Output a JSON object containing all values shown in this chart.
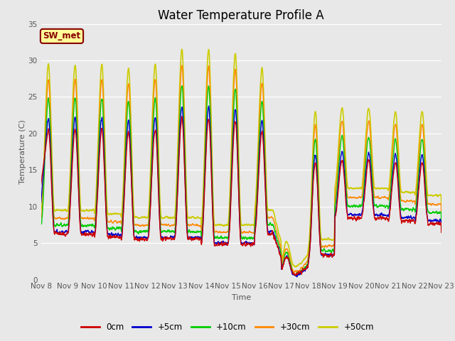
{
  "title": "Water Temperature Profile A",
  "xlabel": "Time",
  "ylabel": "Temperature (C)",
  "ylim": [
    0,
    35
  ],
  "xlim": [
    0,
    15
  ],
  "fig_bg": "#e8e8e8",
  "plot_bg": "#e8e8e8",
  "annotation_text": "SW_met",
  "annotation_bg": "#ffff99",
  "annotation_fg": "#880000",
  "annotation_border": "#880000",
  "legend_entries": [
    "0cm",
    "+5cm",
    "+10cm",
    "+30cm",
    "+50cm"
  ],
  "line_colors": [
    "#cc0000",
    "#0000cc",
    "#00cc00",
    "#ff8800",
    "#cccc00"
  ],
  "line_widths": [
    1.0,
    1.0,
    1.0,
    1.0,
    1.2
  ],
  "xtick_labels": [
    "Nov 8",
    "Nov 9",
    "Nov 10",
    "Nov 11",
    "Nov 12",
    "Nov 13",
    "Nov 14",
    "Nov 15",
    "Nov 16",
    "Nov 17",
    "Nov 18",
    "Nov 19",
    "Nov 20",
    "Nov 21",
    "Nov 22",
    "Nov 23"
  ],
  "ytick_vals": [
    0,
    5,
    10,
    15,
    20,
    25,
    30,
    35
  ],
  "title_fontsize": 12,
  "label_fontsize": 8,
  "tick_fontsize": 7.5
}
